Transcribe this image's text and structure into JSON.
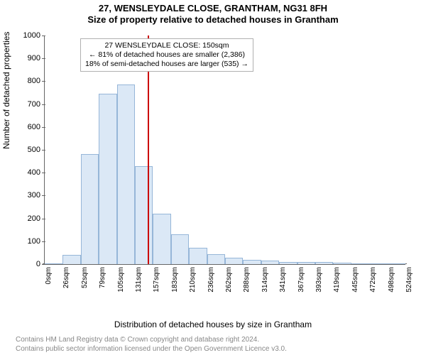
{
  "title_line1": "27, WENSLEYDALE CLOSE, GRANTHAM, NG31 8FH",
  "title_line2": "Size of property relative to detached houses in Grantham",
  "ylabel": "Number of detached properties",
  "xlabel": "Distribution of detached houses by size in Grantham",
  "footer_line1": "Contains HM Land Registry data © Crown copyright and database right 2024.",
  "footer_line2": "Contains public sector information licensed under the Open Government Licence v3.0.",
  "chart": {
    "type": "histogram",
    "background_color": "#ffffff",
    "axis_color": "#666666",
    "bar_fill": "#dbe8f6",
    "bar_stroke": "#96b6d8",
    "refline_color": "#cc0000",
    "refline_width": 2,
    "ylim": [
      0,
      1000
    ],
    "ytick_step": 100,
    "x_bin_width": 26.25,
    "x_tick_labels": [
      "0sqm",
      "26sqm",
      "52sqm",
      "79sqm",
      "105sqm",
      "131sqm",
      "157sqm",
      "183sqm",
      "210sqm",
      "236sqm",
      "262sqm",
      "288sqm",
      "314sqm",
      "341sqm",
      "367sqm",
      "393sqm",
      "419sqm",
      "445sqm",
      "472sqm",
      "498sqm",
      "524sqm"
    ],
    "values": [
      0,
      40,
      480,
      745,
      785,
      430,
      220,
      130,
      70,
      45,
      28,
      20,
      15,
      10,
      10,
      8,
      6,
      4,
      4,
      3
    ],
    "reference_x_sqm": 150,
    "annot_line1": "27 WENSLEYDALE CLOSE: 150sqm",
    "annot_line2": "← 81% of detached houses are smaller (2,386)",
    "annot_line3": "18% of semi-detached houses are larger (535) →",
    "title_fontsize": 13,
    "label_fontsize": 12,
    "tick_fontsize": 11,
    "annot_fontsize": 10.5
  }
}
